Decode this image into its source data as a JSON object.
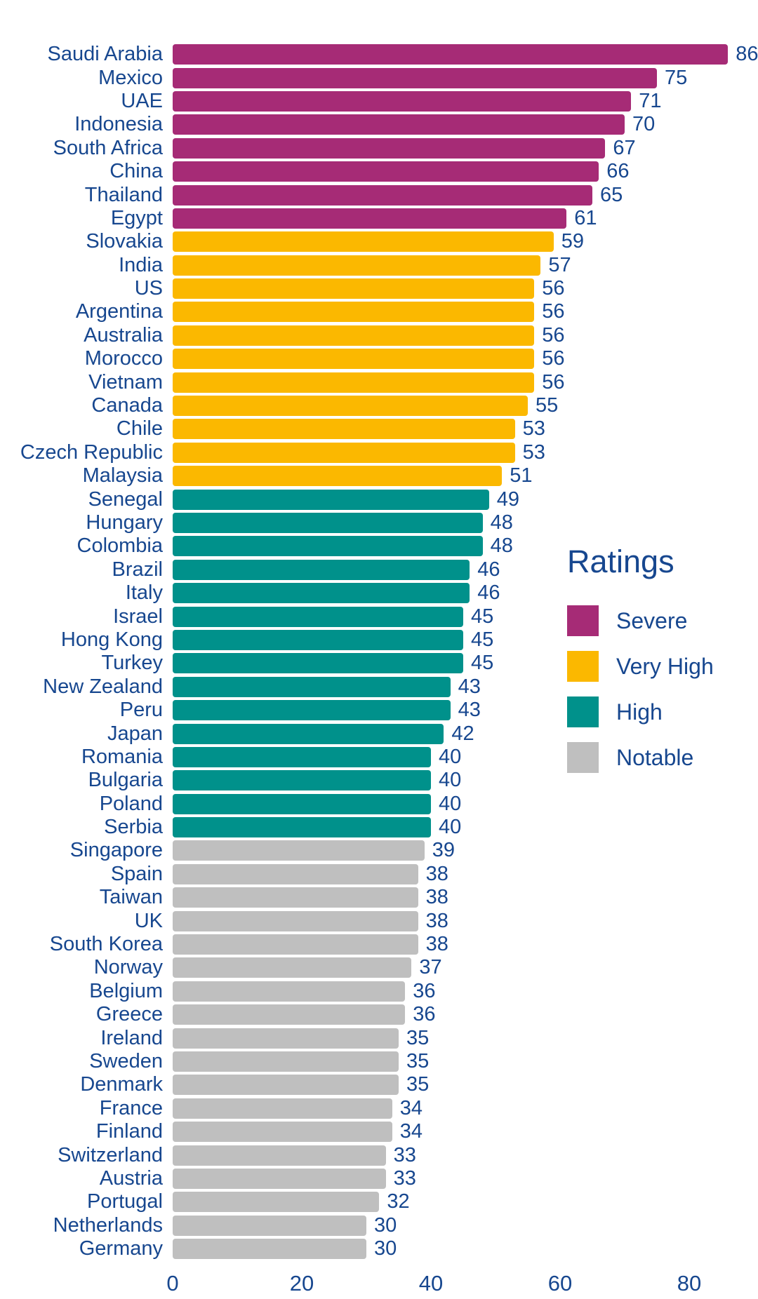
{
  "chart_data": {
    "type": "bar",
    "orientation": "horizontal",
    "title": "",
    "xlabel": "",
    "ylabel": "",
    "xlim": [
      0,
      88
    ],
    "x_ticks": [
      "0",
      "20",
      "40",
      "60",
      "80"
    ],
    "grid": false,
    "rating_colors": {
      "Severe": "#A62B76",
      "Very High": "#FBB800",
      "High": "#00918B",
      "Notable": "#BFBFBF"
    },
    "text_color": "#17478F",
    "legend": {
      "title": "Ratings",
      "position": "right-middle",
      "entries": [
        {
          "label": "Severe",
          "color": "#A62B76"
        },
        {
          "label": "Very High",
          "color": "#FBB800"
        },
        {
          "label": "High",
          "color": "#00918B"
        },
        {
          "label": "Notable",
          "color": "#BFBFBF"
        }
      ]
    },
    "bars": [
      {
        "country": "Saudi Arabia",
        "value": 86,
        "rating": "Severe"
      },
      {
        "country": "Mexico",
        "value": 75,
        "rating": "Severe"
      },
      {
        "country": "UAE",
        "value": 71,
        "rating": "Severe"
      },
      {
        "country": "Indonesia",
        "value": 70,
        "rating": "Severe"
      },
      {
        "country": "South Africa",
        "value": 67,
        "rating": "Severe"
      },
      {
        "country": "China",
        "value": 66,
        "rating": "Severe"
      },
      {
        "country": "Thailand",
        "value": 65,
        "rating": "Severe"
      },
      {
        "country": "Egypt",
        "value": 61,
        "rating": "Severe"
      },
      {
        "country": "Slovakia",
        "value": 59,
        "rating": "Very High"
      },
      {
        "country": "India",
        "value": 57,
        "rating": "Very High"
      },
      {
        "country": "US",
        "value": 56,
        "rating": "Very High"
      },
      {
        "country": "Argentina",
        "value": 56,
        "rating": "Very High"
      },
      {
        "country": "Australia",
        "value": 56,
        "rating": "Very High"
      },
      {
        "country": "Morocco",
        "value": 56,
        "rating": "Very High"
      },
      {
        "country": "Vietnam",
        "value": 56,
        "rating": "Very High"
      },
      {
        "country": "Canada",
        "value": 55,
        "rating": "Very High"
      },
      {
        "country": "Chile",
        "value": 53,
        "rating": "Very High"
      },
      {
        "country": "Czech Republic",
        "value": 53,
        "rating": "Very High"
      },
      {
        "country": "Malaysia",
        "value": 51,
        "rating": "Very High"
      },
      {
        "country": "Senegal",
        "value": 49,
        "rating": "High"
      },
      {
        "country": "Hungary",
        "value": 48,
        "rating": "High"
      },
      {
        "country": "Colombia",
        "value": 48,
        "rating": "High"
      },
      {
        "country": "Brazil",
        "value": 46,
        "rating": "High"
      },
      {
        "country": "Italy",
        "value": 46,
        "rating": "High"
      },
      {
        "country": "Israel",
        "value": 45,
        "rating": "High"
      },
      {
        "country": "Hong Kong",
        "value": 45,
        "rating": "High"
      },
      {
        "country": "Turkey",
        "value": 45,
        "rating": "High"
      },
      {
        "country": "New Zealand",
        "value": 43,
        "rating": "High"
      },
      {
        "country": "Peru",
        "value": 43,
        "rating": "High"
      },
      {
        "country": "Japan",
        "value": 42,
        "rating": "High"
      },
      {
        "country": "Romania",
        "value": 40,
        "rating": "High"
      },
      {
        "country": "Bulgaria",
        "value": 40,
        "rating": "High"
      },
      {
        "country": "Poland",
        "value": 40,
        "rating": "High"
      },
      {
        "country": "Serbia",
        "value": 40,
        "rating": "High"
      },
      {
        "country": "Singapore",
        "value": 39,
        "rating": "Notable"
      },
      {
        "country": "Spain",
        "value": 38,
        "rating": "Notable"
      },
      {
        "country": "Taiwan",
        "value": 38,
        "rating": "Notable"
      },
      {
        "country": "UK",
        "value": 38,
        "rating": "Notable"
      },
      {
        "country": "South Korea",
        "value": 38,
        "rating": "Notable"
      },
      {
        "country": "Norway",
        "value": 37,
        "rating": "Notable"
      },
      {
        "country": "Belgium",
        "value": 36,
        "rating": "Notable"
      },
      {
        "country": "Greece",
        "value": 36,
        "rating": "Notable"
      },
      {
        "country": "Ireland",
        "value": 35,
        "rating": "Notable"
      },
      {
        "country": "Sweden",
        "value": 35,
        "rating": "Notable"
      },
      {
        "country": "Denmark",
        "value": 35,
        "rating": "Notable"
      },
      {
        "country": "France",
        "value": 34,
        "rating": "Notable"
      },
      {
        "country": "Finland",
        "value": 34,
        "rating": "Notable"
      },
      {
        "country": "Switzerland",
        "value": 33,
        "rating": "Notable"
      },
      {
        "country": "Austria",
        "value": 33,
        "rating": "Notable"
      },
      {
        "country": "Portugal",
        "value": 32,
        "rating": "Notable"
      },
      {
        "country": "Netherlands",
        "value": 30,
        "rating": "Notable"
      },
      {
        "country": "Germany",
        "value": 30,
        "rating": "Notable"
      }
    ]
  }
}
